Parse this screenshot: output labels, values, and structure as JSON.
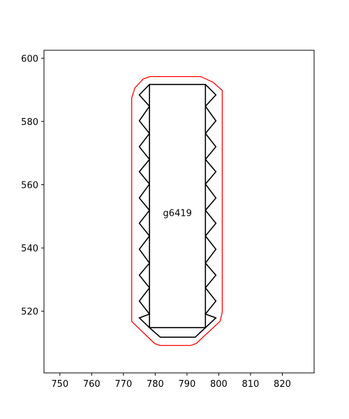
{
  "chart_data": {
    "type": "line",
    "title": "",
    "xlabel": "",
    "ylabel": "",
    "xlim": [
      745,
      830
    ],
    "ylim": [
      500.5,
      602.5
    ],
    "xticks": [
      750,
      760,
      770,
      780,
      790,
      800,
      810,
      820
    ],
    "yticks": [
      520,
      540,
      560,
      580,
      600
    ],
    "grid": false,
    "colors": {
      "outline": "#ff0000",
      "body": "#000000"
    },
    "series": [
      {
        "role": "clearance-outline",
        "color": "#ff0000",
        "closed": true,
        "points": [
          [
            778.3,
            594.2
          ],
          [
            794.3,
            594.2
          ],
          [
            798.2,
            592.4
          ],
          [
            801.1,
            589.8
          ],
          [
            801.1,
            519.7
          ],
          [
            800.4,
            516.8
          ],
          [
            792.9,
            509.8
          ],
          [
            791.2,
            509.2
          ],
          [
            781.5,
            509.2
          ],
          [
            779.8,
            509.8
          ],
          [
            772.6,
            516.8
          ],
          [
            772.6,
            587.4
          ],
          [
            773.6,
            590.6
          ],
          [
            776.2,
            593.4
          ]
        ]
      },
      {
        "role": "body-rectangle",
        "color": "#000000",
        "closed": true,
        "points": [
          [
            778.2,
            591.7
          ],
          [
            795.8,
            591.7
          ],
          [
            795.8,
            514.8
          ],
          [
            778.2,
            514.8
          ]
        ]
      },
      {
        "role": "bottom-tab",
        "color": "#000000",
        "closed": false,
        "points": [
          [
            778.2,
            514.8
          ],
          [
            781.6,
            511.8
          ],
          [
            792.6,
            511.8
          ],
          [
            795.8,
            514.8
          ]
        ]
      },
      {
        "role": "left-pins",
        "color": "#000000",
        "closed": false,
        "points": [
          [
            778.2,
            591.7
          ],
          [
            775.0,
            588.4
          ],
          [
            778.2,
            584.8
          ],
          [
            775.0,
            580.2
          ],
          [
            778.2,
            576.2
          ],
          [
            775.0,
            572.0
          ],
          [
            778.2,
            568.0
          ],
          [
            775.0,
            564.1
          ],
          [
            778.2,
            560.2
          ],
          [
            775.0,
            555.8
          ],
          [
            778.2,
            551.9
          ],
          [
            775.0,
            547.8
          ],
          [
            778.2,
            543.8
          ],
          [
            775.0,
            539.6
          ],
          [
            778.2,
            535.2
          ],
          [
            775.0,
            531.4
          ],
          [
            778.2,
            527.4
          ],
          [
            775.0,
            523.2
          ],
          [
            778.2,
            519.1
          ],
          [
            775.0,
            517.9
          ],
          [
            778.2,
            514.8
          ]
        ]
      },
      {
        "role": "right-pins",
        "color": "#000000",
        "closed": false,
        "points": [
          [
            795.8,
            591.7
          ],
          [
            799.1,
            588.4
          ],
          [
            795.8,
            584.8
          ],
          [
            799.1,
            580.2
          ],
          [
            795.8,
            576.2
          ],
          [
            799.1,
            572.0
          ],
          [
            795.8,
            568.0
          ],
          [
            799.1,
            564.1
          ],
          [
            795.8,
            560.2
          ],
          [
            799.1,
            555.8
          ],
          [
            795.8,
            551.9
          ],
          [
            799.1,
            547.8
          ],
          [
            795.8,
            543.8
          ],
          [
            799.1,
            539.6
          ],
          [
            795.8,
            535.2
          ],
          [
            799.1,
            531.4
          ],
          [
            795.8,
            527.4
          ],
          [
            799.1,
            523.2
          ],
          [
            795.8,
            519.1
          ],
          [
            799.1,
            517.9
          ],
          [
            795.8,
            514.8
          ]
        ]
      }
    ],
    "annotations": [
      {
        "text": "g6419",
        "x": 787.0,
        "y": 551.2
      }
    ]
  }
}
